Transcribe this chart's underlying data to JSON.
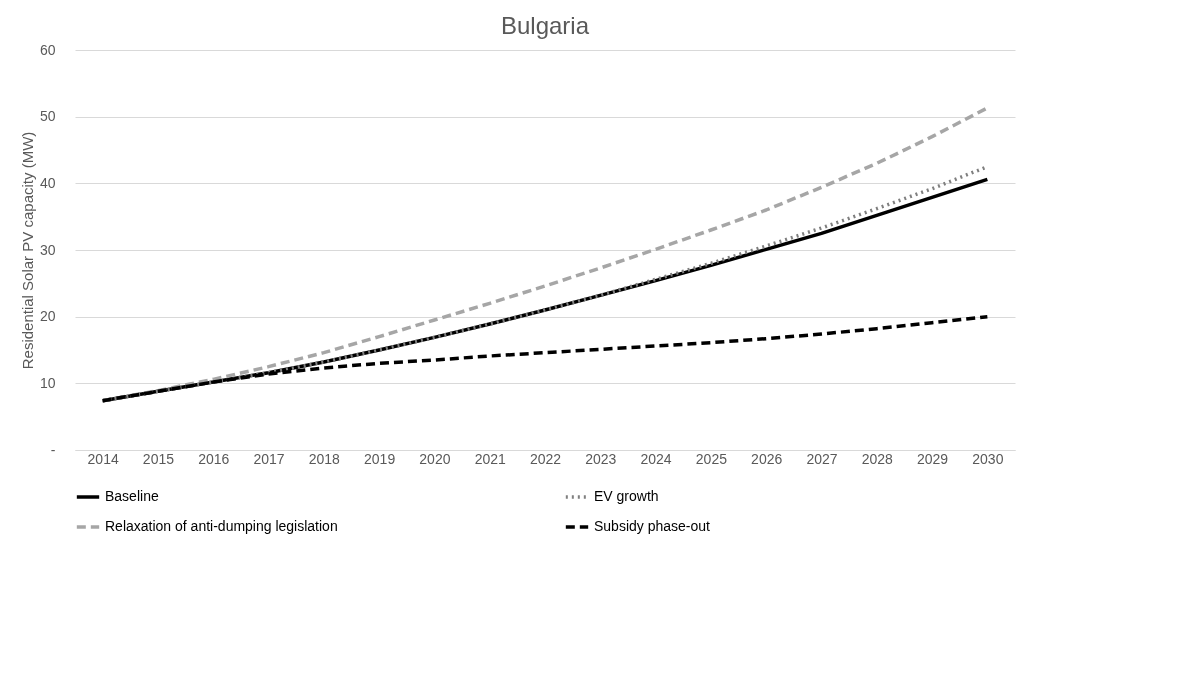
{
  "chart_data": {
    "type": "line",
    "title": "Bulgaria",
    "ylabel": "Residential Solar PV capacity (MW)",
    "categories": [
      "2014",
      "2015",
      "2016",
      "2017",
      "2018",
      "2019",
      "2020",
      "2021",
      "2022",
      "2023",
      "2024",
      "2025",
      "2026",
      "2027",
      "2028",
      "2029",
      "2030"
    ],
    "series": [
      {
        "name": "Baseline",
        "color": "#000000",
        "line_style": "solid",
        "values": [
          7.4,
          8.8,
          10.2,
          11.6,
          13.2,
          15.0,
          16.9,
          18.9,
          21.0,
          23.2,
          25.4,
          27.7,
          30.1,
          32.5,
          35.2,
          37.9,
          40.6
        ]
      },
      {
        "name": "EV growth",
        "color": "#7f7f7f",
        "line_style": "dotted",
        "values": [
          7.4,
          8.8,
          10.2,
          11.6,
          13.2,
          15.0,
          16.9,
          18.9,
          21.0,
          23.2,
          25.6,
          28.0,
          30.6,
          33.3,
          36.2,
          39.2,
          42.5
        ]
      },
      {
        "name": "Relaxation of anti-dumping legislation",
        "color": "#a6a6a6",
        "line_style": "dashed",
        "values": [
          7.4,
          8.9,
          10.6,
          12.5,
          14.6,
          17.0,
          19.5,
          22.0,
          24.6,
          27.3,
          30.1,
          33.0,
          36.0,
          39.4,
          43.0,
          47.0,
          51.3
        ]
      },
      {
        "name": "Subsidy phase-out",
        "color": "#000000",
        "line_style": "dashed",
        "values": [
          7.4,
          8.8,
          10.2,
          11.4,
          12.3,
          13.0,
          13.5,
          14.1,
          14.6,
          15.1,
          15.6,
          16.1,
          16.7,
          17.4,
          18.2,
          19.1,
          20.0
        ]
      }
    ],
    "ylim": [
      0,
      60
    ],
    "yticks": [
      {
        "value": 0,
        "label": "-"
      },
      10,
      20,
      30,
      40,
      50,
      60
    ],
    "grid": "y",
    "legend": "bottom",
    "marker": "none"
  }
}
